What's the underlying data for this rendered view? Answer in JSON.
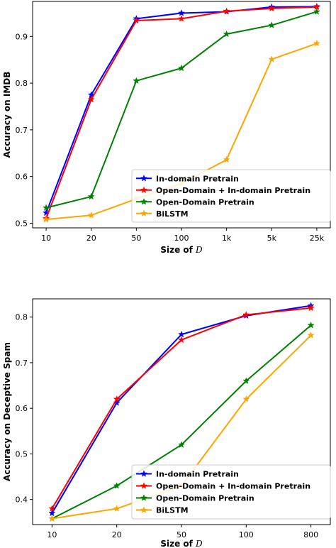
{
  "chart_data": [
    {
      "type": "line",
      "categories": [
        "10",
        "20",
        "50",
        "100",
        "1k",
        "5k",
        "25k"
      ],
      "xlabel": "Size of",
      "xlabel_var": "D",
      "ylabel": "Accuracy on IMDB",
      "ylim": [
        0.49,
        0.975
      ],
      "yticks": [
        0.5,
        0.6,
        0.7,
        0.8,
        0.9
      ],
      "ytick_labels": [
        "0.5",
        "0.6",
        "0.7",
        "0.8",
        "0.9"
      ],
      "grid": false,
      "legend_position": "lower right",
      "series": [
        {
          "name": "In-domain Pretrain",
          "color": "#0000ff",
          "values": [
            0.522,
            0.775,
            0.938,
            0.95,
            0.953,
            0.963,
            0.964
          ]
        },
        {
          "name": "Open-Domain + In-domain Pretrain",
          "color": "#ff0000",
          "values": [
            0.51,
            0.765,
            0.934,
            0.938,
            0.954,
            0.96,
            0.963
          ]
        },
        {
          "name": "Open-Domain Pretrain",
          "color": "#008000",
          "values": [
            0.533,
            0.557,
            0.805,
            0.832,
            0.905,
            0.924,
            0.953
          ]
        },
        {
          "name": "BiLSTM",
          "color": "#ffa500",
          "values": [
            0.508,
            0.517,
            0.552,
            0.585,
            0.636,
            0.851,
            0.885
          ]
        }
      ]
    },
    {
      "type": "line",
      "categories": [
        "10",
        "20",
        "50",
        "100",
        "800"
      ],
      "xlabel": "Size of",
      "xlabel_var": "D",
      "ylabel": "Accuracy on Deceptive Spam",
      "ylim": [
        0.345,
        0.84
      ],
      "yticks": [
        0.4,
        0.5,
        0.6,
        0.7,
        0.8
      ],
      "ytick_labels": [
        "0.4",
        "0.5",
        "0.6",
        "0.7",
        "0.8"
      ],
      "grid": false,
      "legend_position": "lower right",
      "series": [
        {
          "name": "In-domain Pretrain",
          "color": "#0000ff",
          "values": [
            0.37,
            0.612,
            0.762,
            0.803,
            0.825
          ]
        },
        {
          "name": "Open-Domain + In-domain Pretrain",
          "color": "#ff0000",
          "values": [
            0.38,
            0.62,
            0.75,
            0.805,
            0.82
          ]
        },
        {
          "name": "Open-Domain Pretrain",
          "color": "#008000",
          "values": [
            0.358,
            0.43,
            0.52,
            0.66,
            0.782
          ]
        },
        {
          "name": "BiLSTM",
          "color": "#ffa500",
          "values": [
            0.358,
            0.38,
            0.43,
            0.62,
            0.76
          ]
        }
      ]
    }
  ]
}
